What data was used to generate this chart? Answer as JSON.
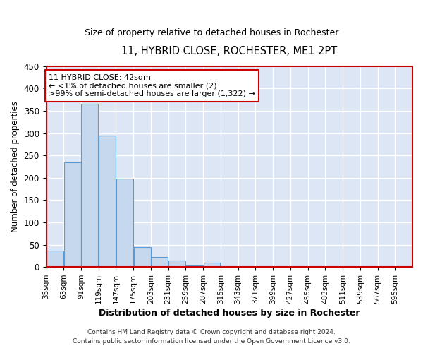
{
  "title": "11, HYBRID CLOSE, ROCHESTER, ME1 2PT",
  "subtitle": "Size of property relative to detached houses in Rochester",
  "xlabel": "Distribution of detached houses by size in Rochester",
  "ylabel": "Number of detached properties",
  "bar_values": [
    36,
    235,
    365,
    295,
    198,
    45,
    22,
    15,
    4,
    10,
    1,
    0,
    0,
    0,
    0,
    0,
    0,
    0,
    0,
    0,
    0
  ],
  "bar_labels": [
    "35sqm",
    "63sqm",
    "91sqm",
    "119sqm",
    "147sqm",
    "175sqm",
    "203sqm",
    "231sqm",
    "259sqm",
    "287sqm",
    "315sqm",
    "343sqm",
    "371sqm",
    "399sqm",
    "427sqm",
    "455sqm",
    "483sqm",
    "511sqm",
    "539sqm",
    "567sqm",
    "595sqm"
  ],
  "bar_color": "#c5d8ed",
  "bar_edgecolor": "#5b9bd5",
  "ylim": [
    0,
    450
  ],
  "yticks": [
    0,
    50,
    100,
    150,
    200,
    250,
    300,
    350,
    400,
    450
  ],
  "annotation_title": "11 HYBRID CLOSE: 42sqm",
  "annotation_line1": "← <1% of detached houses are smaller (2)",
  "annotation_line2": ">99% of semi-detached houses are larger (1,322) →",
  "annotation_box_facecolor": "#ffffff",
  "annotation_box_edgecolor": "#cc0000",
  "footer_line1": "Contains HM Land Registry data © Crown copyright and database right 2024.",
  "footer_line2": "Contains public sector information licensed under the Open Government Licence v3.0.",
  "plot_bg_color": "#dce6f5",
  "fig_bg_color": "#ffffff",
  "grid_color": "#ffffff",
  "spine_color": "#cc0000"
}
